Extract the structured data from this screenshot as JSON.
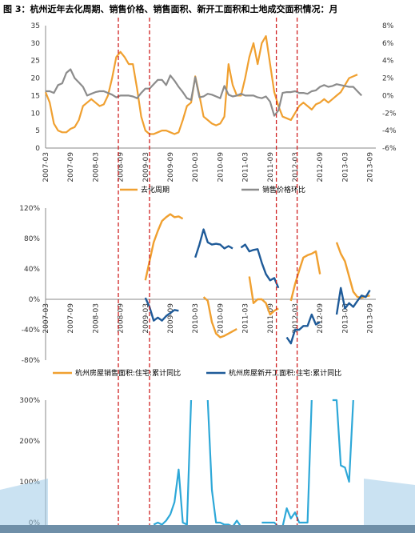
{
  "figure_title": "图 3：杭州近年去化周期、销售价格、销售面积、新开工面积和土地成交面积情况：月",
  "chart_data": [
    {
      "type": "line",
      "x_labels": [
        "2007-03",
        "2007-09",
        "2008-03",
        "2008-09",
        "2009-03",
        "2009-09",
        "2010-03",
        "2010-09",
        "2011-03",
        "2011-09",
        "2012-03",
        "2012-09",
        "2013-03",
        "2013-09"
      ],
      "y_left": {
        "range": [
          0,
          35
        ],
        "ticks": [
          "0",
          "5",
          "10",
          "15",
          "20",
          "25",
          "30",
          "35"
        ]
      },
      "y_right": {
        "range": [
          -6,
          8
        ],
        "ticks": [
          "-6%",
          "-4%",
          "-2%",
          "0%",
          "2%",
          "4%",
          "6%",
          "8%"
        ]
      },
      "series": [
        {
          "name": "去化周期",
          "axis": "left",
          "color": "#F0A030",
          "values": [
            16,
            13,
            7,
            5,
            4.5,
            4.5,
            5.5,
            6,
            8,
            12,
            13,
            14,
            13,
            12,
            12.5,
            15,
            20,
            26,
            27.5,
            26,
            24,
            24,
            17,
            9,
            5,
            4,
            4,
            4.5,
            5,
            5,
            4.5,
            4,
            4.5,
            8,
            12,
            13,
            20.5,
            15,
            9,
            8,
            7,
            6.5,
            7,
            9,
            24,
            18,
            15,
            15,
            20,
            26,
            30,
            24,
            30,
            32,
            24,
            16,
            12,
            9,
            8.5,
            8,
            10,
            12,
            13,
            12,
            11,
            12.5,
            13,
            14,
            13,
            14,
            15,
            16,
            18,
            20,
            20.5,
            21
          ]
        },
        {
          "name": "销售价格环比",
          "axis": "right",
          "color": "#8C8C8C",
          "values": [
            0.5,
            0.5,
            0.3,
            1.2,
            1.4,
            2.6,
            3,
            2,
            1.5,
            1,
            0,
            0.2,
            0.4,
            0.5,
            0.5,
            0.3,
            0.1,
            -0.2,
            0,
            0,
            0,
            -0.1,
            -0.3,
            0.3,
            0.8,
            0.8,
            1.3,
            1.8,
            1.8,
            1.2,
            2.3,
            1.7,
            1,
            0.4,
            -0.3,
            -0.5,
            2.1,
            -0.2,
            -0.1,
            0.2,
            0.1,
            -0.1,
            -0.3,
            1.1,
            0.1,
            -0.1,
            0,
            0.2,
            0,
            0,
            0,
            -0.2,
            -0.3,
            -0.1,
            -0.7,
            -2.3,
            -1.7,
            0.3,
            0.4,
            0.4,
            0.5,
            0.3,
            0.3,
            0.2,
            0.5,
            0.6,
            1,
            1.2,
            1,
            1.1,
            1.3,
            1.2,
            1.1,
            1,
            1,
            0.5,
            0
          ]
        }
      ],
      "legend_placement": "bottom",
      "gridlines": false
    },
    {
      "type": "line",
      "x_labels": [
        "2007-03",
        "2007-09",
        "2008-03",
        "2008-09",
        "2009-03",
        "2009-09",
        "2010-03",
        "2010-09",
        "2011-03",
        "2011-09",
        "2012-03",
        "2012-09",
        "2013-03",
        "2013-09"
      ],
      "y": {
        "range": [
          -0.8,
          1.2
        ],
        "ticks": [
          "-80%",
          "-40%",
          "0%",
          "40%",
          "80%",
          "120%"
        ]
      },
      "series": [
        {
          "name": "杭州房屋销售面积:住宅:累计同比",
          "color": "#F0A030",
          "points": [
            [
              24,
              0.25
            ],
            [
              25,
              0.5
            ],
            [
              26,
              0.75
            ],
            [
              27,
              0.9
            ],
            [
              28,
              1.03
            ],
            [
              29,
              1.08
            ],
            [
              30,
              1.12
            ],
            [
              31,
              1.08
            ],
            [
              32,
              1.09
            ],
            [
              33,
              1.06
            ],
            null,
            [
              38,
              0.03
            ],
            [
              39,
              -0.02
            ],
            [
              40,
              -0.3
            ],
            [
              41,
              -0.45
            ],
            [
              42,
              -0.5
            ],
            [
              43,
              -0.48
            ],
            [
              44,
              -0.45
            ],
            [
              45,
              -0.42
            ],
            [
              46,
              -0.39
            ],
            null,
            [
              49,
              0.3
            ],
            [
              50,
              -0.05
            ],
            [
              51,
              0.0
            ],
            [
              52,
              0.0
            ],
            [
              53,
              -0.05
            ],
            [
              54,
              -0.2
            ],
            [
              55,
              -0.15
            ],
            [
              56,
              -0.12
            ],
            null,
            [
              59,
              -0.02
            ],
            [
              60,
              0.2
            ],
            [
              61,
              0.38
            ],
            [
              62,
              0.55
            ],
            [
              63,
              0.58
            ],
            [
              64,
              0.6
            ],
            [
              65,
              0.63
            ],
            [
              66,
              0.33
            ],
            null,
            [
              70,
              0.75
            ],
            [
              71,
              0.6
            ],
            [
              72,
              0.5
            ],
            [
              73,
              0.3
            ],
            [
              74,
              0.1
            ],
            [
              75,
              0.03
            ],
            [
              76,
              0.02
            ],
            [
              77,
              0.04
            ],
            [
              78,
              0.05
            ]
          ]
        },
        {
          "name": "杭州房屋新开工面积:住宅:累计同比",
          "color": "#1F5B99",
          "points": [
            [
              24,
              0.02
            ],
            [
              25,
              -0.1
            ],
            [
              26,
              -0.28
            ],
            [
              27,
              -0.24
            ],
            [
              28,
              -0.28
            ],
            [
              29,
              -0.22
            ],
            [
              30,
              -0.18
            ],
            [
              31,
              -0.14
            ],
            [
              32,
              -0.15
            ],
            null,
            [
              36,
              0.55
            ],
            [
              37,
              0.72
            ],
            [
              38,
              0.92
            ],
            [
              39,
              0.75
            ],
            [
              40,
              0.72
            ],
            [
              41,
              0.73
            ],
            [
              42,
              0.72
            ],
            [
              43,
              0.67
            ],
            [
              44,
              0.7
            ],
            [
              45,
              0.67
            ],
            null,
            [
              47,
              0.68
            ],
            [
              48,
              0.72
            ],
            [
              49,
              0.63
            ],
            [
              50,
              0.65
            ],
            [
              51,
              0.66
            ],
            [
              52,
              0.48
            ],
            [
              53,
              0.33
            ],
            [
              54,
              0.25
            ],
            [
              55,
              0.28
            ],
            [
              56,
              0.15
            ],
            null,
            [
              58,
              -0.5
            ],
            [
              59,
              -0.58
            ],
            [
              60,
              -0.4
            ],
            [
              61,
              -0.4
            ],
            [
              62,
              -0.35
            ],
            [
              63,
              -0.35
            ],
            [
              64,
              -0.2
            ],
            [
              65,
              -0.33
            ],
            [
              66,
              -0.3
            ],
            null,
            [
              70,
              -0.2
            ],
            [
              71,
              0.15
            ],
            [
              72,
              -0.12
            ],
            [
              73,
              -0.05
            ],
            [
              74,
              -0.1
            ],
            [
              75,
              -0.02
            ],
            [
              76,
              0.05
            ],
            [
              77,
              0.03
            ],
            [
              78,
              0.12
            ]
          ]
        }
      ],
      "legend_placement": "bottom",
      "gridlines": false
    },
    {
      "type": "line",
      "y": {
        "range": [
          0,
          3
        ],
        "ticks": [
          "0%",
          "100%",
          "200%",
          "300%"
        ]
      },
      "series": [
        {
          "name": "",
          "color": "#2EA8D8",
          "points": [
            [
              26,
              -0.05
            ],
            [
              27,
              0.0
            ],
            [
              28,
              -0.05
            ],
            [
              29,
              0.05
            ],
            [
              30,
              0.2
            ],
            [
              31,
              0.5
            ],
            [
              32,
              1.3
            ],
            [
              33,
              0.0
            ],
            [
              34,
              -0.05
            ],
            [
              35,
              3.0
            ],
            null,
            [
              39,
              3.0
            ],
            [
              40,
              0.8
            ],
            [
              41,
              0.0
            ],
            [
              42,
              0.0
            ],
            [
              43,
              -0.05
            ],
            [
              44,
              -0.05
            ],
            [
              45,
              -0.1
            ],
            [
              46,
              0.05
            ],
            [
              47,
              -0.1
            ],
            null,
            [
              52,
              0.0
            ],
            [
              53,
              0.0
            ],
            [
              54,
              0.0
            ],
            [
              55,
              0.0
            ],
            [
              56,
              -0.1
            ],
            [
              57,
              -0.1
            ],
            [
              58,
              0.35
            ],
            [
              59,
              0.1
            ],
            [
              60,
              0.25
            ],
            [
              61,
              0.0
            ],
            [
              62,
              0.0
            ],
            [
              63,
              0.0
            ],
            [
              64,
              3.0
            ],
            null,
            [
              69,
              3.0
            ],
            [
              70,
              3.0
            ],
            [
              71,
              1.4
            ],
            [
              72,
              1.35
            ],
            [
              73,
              1.0
            ],
            [
              74,
              3.0
            ]
          ]
        }
      ]
    }
  ],
  "reference_lines_x": [
    17.5,
    25,
    55.5,
    60.5
  ],
  "reference_line_color": "#D02020"
}
